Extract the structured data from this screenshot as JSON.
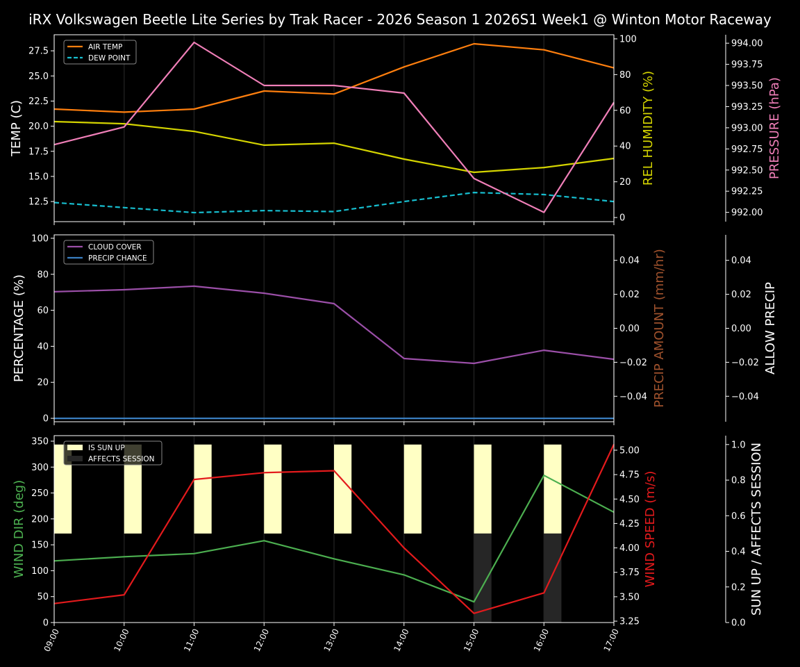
{
  "chart_data": [
    {
      "type": "line",
      "title": "iRX Volkswagen Beetle Lite Series by Trak Racer - 2026 Season 1 2026S1 Week1 @ Winton Motor Raceway",
      "x": [
        "09:00",
        "10:00",
        "11:00",
        "12:00",
        "13:00",
        "14:00",
        "15:00",
        "16:00",
        "17:00"
      ],
      "grid": "vertical",
      "legend": "top-left",
      "axes": {
        "left": {
          "label": "TEMP (C)",
          "color": "#ffffff",
          "ylim": [
            10.5,
            29.1
          ],
          "ticks": [
            12.5,
            15.0,
            17.5,
            20.0,
            22.5,
            25.0,
            27.5
          ],
          "tick_labels": [
            "12.5",
            "15.0",
            "17.5",
            "20.0",
            "22.5",
            "25.0",
            "27.5"
          ]
        },
        "right": {
          "label": "REL HUMIDITY (%)",
          "color": "#d4d400",
          "ylim": [
            -2.3,
            102.3
          ],
          "ticks": [
            0,
            20,
            40,
            60,
            80,
            100
          ],
          "tick_labels": [
            "0",
            "20",
            "40",
            "60",
            "80",
            "100"
          ]
        },
        "right2": {
          "label": "PRESSURE (hPa)",
          "color": "#f07fb8",
          "ylim": [
            991.89,
            994.1
          ],
          "ticks": [
            992.0,
            992.25,
            992.5,
            992.75,
            993.0,
            993.25,
            993.5,
            993.75,
            994.0
          ],
          "tick_labels": [
            "992.00",
            "992.25",
            "992.50",
            "992.75",
            "993.00",
            "993.25",
            "993.50",
            "993.75",
            "994.00"
          ]
        }
      },
      "series": [
        {
          "name": "AIR TEMP",
          "axis": "left",
          "color": "#ff7f0e",
          "style": "solid",
          "legend": true,
          "values": [
            21.7,
            21.4,
            21.7,
            23.5,
            23.2,
            25.9,
            28.2,
            27.6,
            25.8
          ]
        },
        {
          "name": "DEW POINT",
          "axis": "left",
          "color": "#17becf",
          "style": "dashed",
          "legend": true,
          "values": [
            12.4,
            11.9,
            11.4,
            11.6,
            11.5,
            12.5,
            13.4,
            13.2,
            12.5
          ]
        },
        {
          "axis": "right",
          "color": "#d4d400",
          "style": "solid",
          "legend": false,
          "values": [
            53.7,
            52.5,
            48.2,
            40.5,
            41.6,
            32.7,
            25.3,
            28.0,
            33.1
          ]
        },
        {
          "axis": "right2",
          "color": "#f07fb8",
          "style": "solid",
          "legend": false,
          "values": [
            992.8,
            993.01,
            994.01,
            993.5,
            993.5,
            993.41,
            992.4,
            992.0,
            993.3
          ]
        }
      ]
    },
    {
      "type": "line",
      "x": [
        "09:00",
        "10:00",
        "11:00",
        "12:00",
        "13:00",
        "14:00",
        "15:00",
        "16:00",
        "17:00"
      ],
      "grid": "vertical",
      "legend": "top-left",
      "axes": {
        "left": {
          "label": "PERCENTAGE (%)",
          "color": "#ffffff",
          "ylim": [
            -1.9,
            101.9
          ],
          "ticks": [
            0,
            20,
            40,
            60,
            80,
            100
          ],
          "tick_labels": [
            "0",
            "20",
            "40",
            "60",
            "80",
            "100"
          ]
        },
        "right": {
          "label": "PRECIP AMOUNT (mm/hr)",
          "color": "#a0522d",
          "ylim": [
            -0.055,
            0.055
          ],
          "ticks": [
            -0.04,
            -0.02,
            0.0,
            0.02,
            0.04
          ],
          "tick_labels": [
            "−0.04",
            "−0.02",
            "0.00",
            "0.02",
            "0.04"
          ]
        },
        "right2": {
          "label": "ALLOW PRECIP",
          "color": "#ffffff",
          "ylim": [
            -0.055,
            0.055
          ],
          "ticks": [
            -0.04,
            -0.02,
            0.0,
            0.02,
            0.04
          ],
          "tick_labels": [
            "−0.04",
            "−0.02",
            "0.00",
            "0.02",
            "0.04"
          ]
        }
      },
      "series": [
        {
          "name": "CLOUD COVER",
          "axis": "left",
          "color": "#9b4fa8",
          "style": "solid",
          "legend": true,
          "values": [
            70.3,
            71.4,
            73.4,
            69.5,
            63.7,
            33.2,
            30.5,
            37.8,
            32.8
          ]
        },
        {
          "name": "PRECIP CHANCE",
          "axis": "left",
          "color": "#3a7fc1",
          "style": "solid",
          "legend": true,
          "values": [
            0,
            0,
            0,
            0,
            0,
            0,
            0,
            0,
            0
          ]
        }
      ]
    },
    {
      "type": "line",
      "x": [
        "09:00",
        "10:00",
        "11:00",
        "12:00",
        "13:00",
        "14:00",
        "15:00",
        "16:00",
        "17:00"
      ],
      "xlabel_rotation": 65,
      "grid": "vertical",
      "legend": "top-left",
      "axes": {
        "left": {
          "label": "WIND DIR (deg)",
          "color": "#4caf50",
          "ylim": [
            0,
            360.7
          ],
          "ticks": [
            0,
            50,
            100,
            150,
            200,
            250,
            300,
            350
          ],
          "tick_labels": [
            "0",
            "50",
            "100",
            "150",
            "200",
            "250",
            "300",
            "350"
          ]
        },
        "right": {
          "label": "WIND SPEED (m/s)",
          "color": "#e31a1c",
          "ylim": [
            3.236,
            5.149
          ],
          "ticks": [
            3.25,
            3.5,
            3.75,
            4.0,
            4.25,
            4.5,
            4.75,
            5.0
          ],
          "tick_labels": [
            "3.25",
            "3.50",
            "3.75",
            "4.00",
            "4.25",
            "4.50",
            "4.75",
            "5.00"
          ]
        },
        "right2": {
          "label": "SUN UP / AFFECTS SESSION",
          "color": "#ffffff",
          "ylim": [
            0,
            1.05
          ],
          "ticks": [
            0,
            0.2,
            0.4,
            0.6,
            0.8,
            1.0
          ],
          "tick_labels": [
            "0.0",
            "0.2",
            "0.4",
            "0.6",
            "0.8",
            "1.0"
          ]
        }
      },
      "bars": [
        {
          "name": "IS SUN UP",
          "axis": "right2",
          "color": "#ffffc4",
          "base": 0.5,
          "top": 1.0,
          "values": [
            1,
            1,
            1,
            1,
            1,
            1,
            1,
            1,
            0
          ]
        },
        {
          "name": "AFFECTS SESSION",
          "axis": "right2",
          "color": "#262626",
          "base": 0.0,
          "top": 0.5,
          "values": [
            0,
            0,
            0,
            0,
            0,
            0,
            1,
            1,
            0
          ]
        }
      ],
      "series": [
        {
          "axis": "left",
          "color": "#4caf50",
          "style": "solid",
          "legend": false,
          "values": [
            119,
            127,
            133,
            158,
            123,
            92,
            40,
            284,
            213
          ]
        },
        {
          "axis": "right",
          "color": "#e31a1c",
          "style": "solid",
          "legend": false,
          "values": [
            3.43,
            3.52,
            4.7,
            4.77,
            4.79,
            4.0,
            3.33,
            3.54,
            5.06
          ]
        }
      ]
    }
  ]
}
